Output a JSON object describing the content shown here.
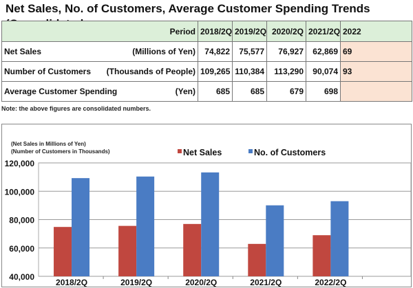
{
  "title": "Net Sales, No. of Customers, Average Customer Spending Trends (Consolidated",
  "table": {
    "header_label": "Period",
    "periods": [
      "2018/2Q",
      "2019/2Q",
      "2020/2Q",
      "2021/2Q",
      "2022"
    ],
    "rows": [
      {
        "label": "Net Sales",
        "unit": "(Millions of Yen)",
        "values": [
          "74,822",
          "75,577",
          "76,927",
          "62,869",
          "69"
        ]
      },
      {
        "label": "Number of Customers",
        "unit": "(Thousands of People)",
        "values": [
          "109,265",
          "110,384",
          "113,290",
          "90,074",
          "93"
        ]
      },
      {
        "label": "Average Customer Spending",
        "unit": "(Yen)",
        "values": [
          "685",
          "685",
          "679",
          "698",
          ""
        ]
      }
    ]
  },
  "note": "Note: the above figures are consolidated numbers.",
  "chart_data": {
    "type": "bar",
    "unit_labels": [
      "(Net Sales in Millions of Yen)",
      "(Number of Customers in Thousands)"
    ],
    "categories": [
      "2018/2Q",
      "2019/2Q",
      "2020/2Q",
      "2021/2Q",
      "2022/2Q"
    ],
    "series": [
      {
        "name": "Net Sales",
        "color": "#c0473f",
        "values": [
          74822,
          75577,
          76927,
          62869,
          69000
        ]
      },
      {
        "name": "No. of Customers",
        "color": "#4a7cc4",
        "values": [
          109265,
          110384,
          113290,
          90074,
          93000
        ]
      }
    ],
    "ylim": [
      40000,
      120000
    ],
    "yticks": [
      "40,000",
      "60,000",
      "80,000",
      "100,000",
      "120,000"
    ],
    "grid": true,
    "legend": "top-center"
  }
}
